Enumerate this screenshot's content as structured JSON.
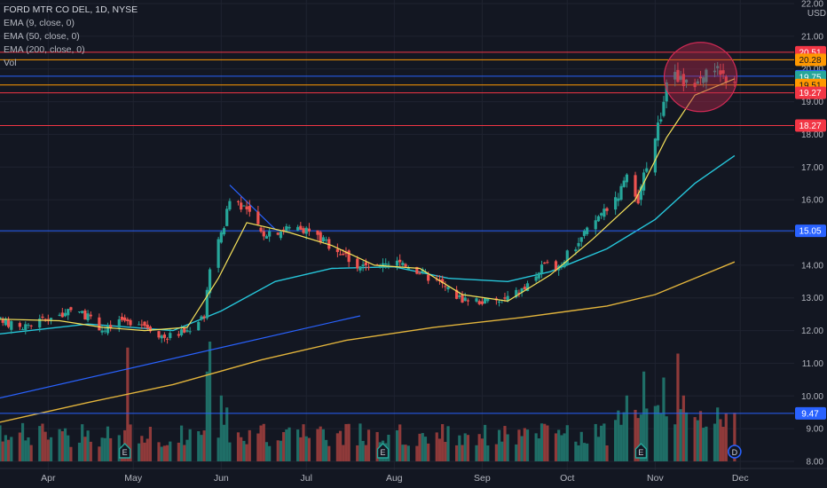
{
  "legend": {
    "title": "FORD MTR CO DEL, 1D, NYSE",
    "ema9": "EMA (9, close, 0)",
    "ema50": "EMA (50, close, 0)",
    "ema200": "EMA (200, close, 0)",
    "vol": "Vol"
  },
  "currency": "USD",
  "colors": {
    "background": "#131722",
    "grid": "#1f2330",
    "up": "#26a69a",
    "down": "#ef5350",
    "vol_up": "#1f6e67",
    "vol_down": "#8f3a3a",
    "ema9": "#f5e15a",
    "ema50": "#26c6da",
    "ema200": "#e2b43c",
    "trend": "#2962ff",
    "circle": "#b0274a",
    "label_red": "#f23645",
    "label_orange": "#ff9800",
    "label_blue": "#2962ff",
    "axis_text": "#b2b5be"
  },
  "chart_data": {
    "type": "candlestick",
    "symbol": "FORD MTR CO DEL",
    "interval": "1D",
    "exchange": "NYSE",
    "y_axis": {
      "min": 8.0,
      "max": 22.0,
      "ticks": [
        8.0,
        9.0,
        10.0,
        11.0,
        12.0,
        13.0,
        14.0,
        15.0,
        16.0,
        17.0,
        18.0,
        19.0,
        20.0,
        21.0,
        22.0
      ]
    },
    "x_axis": {
      "start": "2021-03-15",
      "end": "2021-12-20",
      "labels": [
        {
          "date": "2021-04-01",
          "label": "Apr"
        },
        {
          "date": "2021-05-01",
          "label": "May"
        },
        {
          "date": "2021-06-01",
          "label": "Jun"
        },
        {
          "date": "2021-07-01",
          "label": "Jul"
        },
        {
          "date": "2021-08-01",
          "label": "Aug"
        },
        {
          "date": "2021-09-01",
          "label": "Sep"
        },
        {
          "date": "2021-10-01",
          "label": "Oct"
        },
        {
          "date": "2021-11-01",
          "label": "Nov"
        },
        {
          "date": "2021-12-01",
          "label": "Dec"
        }
      ]
    },
    "close_path": [
      [
        "2021-03-15",
        12.3
      ],
      [
        "2021-03-22",
        12.1
      ],
      [
        "2021-04-01",
        12.4
      ],
      [
        "2021-04-12",
        12.6
      ],
      [
        "2021-04-21",
        12.0
      ],
      [
        "2021-04-26",
        12.3
      ],
      [
        "2021-05-03",
        12.3
      ],
      [
        "2021-05-12",
        11.8
      ],
      [
        "2021-05-20",
        12.0
      ],
      [
        "2021-05-26",
        12.5
      ],
      [
        "2021-05-28",
        14.0
      ],
      [
        "2021-06-01",
        14.9
      ],
      [
        "2021-06-04",
        16.1
      ],
      [
        "2021-06-09",
        15.8
      ],
      [
        "2021-06-15",
        15.0
      ],
      [
        "2021-06-22",
        15.1
      ],
      [
        "2021-06-29",
        15.2
      ],
      [
        "2021-07-06",
        14.8
      ],
      [
        "2021-07-12",
        14.5
      ],
      [
        "2021-07-19",
        14.0
      ],
      [
        "2021-07-26",
        13.9
      ],
      [
        "2021-08-04",
        14.1
      ],
      [
        "2021-08-10",
        13.8
      ],
      [
        "2021-08-18",
        13.4
      ],
      [
        "2021-08-24",
        13.0
      ],
      [
        "2021-09-01",
        12.9
      ],
      [
        "2021-09-08",
        12.9
      ],
      [
        "2021-09-16",
        13.3
      ],
      [
        "2021-09-22",
        13.9
      ],
      [
        "2021-09-28",
        14.0
      ],
      [
        "2021-10-05",
        14.7
      ],
      [
        "2021-10-12",
        15.5
      ],
      [
        "2021-10-19",
        16.2
      ],
      [
        "2021-10-22",
        16.6
      ],
      [
        "2021-10-26",
        15.8
      ],
      [
        "2021-10-29",
        17.1
      ],
      [
        "2021-11-03",
        18.6
      ],
      [
        "2021-11-05",
        19.4
      ],
      [
        "2021-11-09",
        19.8
      ],
      [
        "2021-11-12",
        19.5
      ],
      [
        "2021-11-17",
        19.7
      ],
      [
        "2021-11-22",
        20.1
      ],
      [
        "2021-11-26",
        19.6
      ],
      [
        "2021-11-29",
        19.73
      ]
    ],
    "series": [
      {
        "name": "EMA (9, close, 0)",
        "points": [
          [
            "2021-03-15",
            12.35
          ],
          [
            "2021-04-05",
            12.3
          ],
          [
            "2021-04-20",
            12.1
          ],
          [
            "2021-05-05",
            12.0
          ],
          [
            "2021-05-20",
            12.1
          ],
          [
            "2021-05-31",
            13.6
          ],
          [
            "2021-06-10",
            15.3
          ],
          [
            "2021-06-25",
            15.0
          ],
          [
            "2021-07-10",
            14.6
          ],
          [
            "2021-07-25",
            14.0
          ],
          [
            "2021-08-10",
            13.9
          ],
          [
            "2021-08-25",
            13.1
          ],
          [
            "2021-09-10",
            12.9
          ],
          [
            "2021-09-25",
            13.7
          ],
          [
            "2021-10-10",
            14.8
          ],
          [
            "2021-10-25",
            16.0
          ],
          [
            "2021-11-05",
            17.9
          ],
          [
            "2021-11-15",
            19.2
          ],
          [
            "2021-11-29",
            19.7
          ]
        ]
      },
      {
        "name": "EMA (50, close, 0)",
        "points": [
          [
            "2021-03-15",
            11.9
          ],
          [
            "2021-04-15",
            12.2
          ],
          [
            "2021-05-15",
            12.0
          ],
          [
            "2021-06-01",
            12.6
          ],
          [
            "2021-06-20",
            13.5
          ],
          [
            "2021-07-10",
            13.9
          ],
          [
            "2021-08-01",
            13.95
          ],
          [
            "2021-08-20",
            13.6
          ],
          [
            "2021-09-10",
            13.5
          ],
          [
            "2021-09-25",
            13.8
          ],
          [
            "2021-10-15",
            14.5
          ],
          [
            "2021-11-01",
            15.4
          ],
          [
            "2021-11-15",
            16.5
          ],
          [
            "2021-11-29",
            17.35
          ]
        ]
      },
      {
        "name": "EMA (200, close, 0)",
        "points": [
          [
            "2021-03-15",
            9.2
          ],
          [
            "2021-04-15",
            9.8
          ],
          [
            "2021-05-15",
            10.35
          ],
          [
            "2021-06-15",
            11.1
          ],
          [
            "2021-07-15",
            11.7
          ],
          [
            "2021-08-15",
            12.1
          ],
          [
            "2021-09-15",
            12.4
          ],
          [
            "2021-10-15",
            12.75
          ],
          [
            "2021-11-01",
            13.1
          ],
          [
            "2021-11-15",
            13.6
          ],
          [
            "2021-11-29",
            14.1
          ]
        ]
      }
    ],
    "trend_lines": [
      {
        "from": [
          "2021-03-12",
          9.88
        ],
        "to": [
          "2021-07-20",
          12.45
        ]
      },
      {
        "from": [
          "2021-06-04",
          16.45
        ],
        "to": [
          "2021-06-20",
          15.1
        ]
      }
    ],
    "horizontal_levels": [
      {
        "value": 20.51,
        "label": "20.51",
        "color": "#f23645"
      },
      {
        "value": 20.28,
        "label": "20.28",
        "color": "#ff9800"
      },
      {
        "value": 19.78,
        "label": "19.78",
        "color": "#2962ff"
      },
      {
        "value": 19.75,
        "label": "19.75",
        "color": "#26a69a"
      },
      {
        "value": 19.51,
        "label": "19.51",
        "color": "#ff9800"
      },
      {
        "value": 19.27,
        "label": "19.27",
        "color": "#f23645"
      },
      {
        "value": 18.27,
        "label": "18.27",
        "color": "#f23645"
      },
      {
        "value": 15.05,
        "label": "15.05",
        "color": "#2962ff"
      },
      {
        "value": 9.47,
        "label": "9.47",
        "color": "#2962ff"
      }
    ],
    "highlight_circle": {
      "date": "2021-11-17",
      "value": 19.7
    },
    "event_markers": [
      {
        "date": "2021-04-28",
        "letter": "E"
      },
      {
        "date": "2021-07-28",
        "letter": "E"
      },
      {
        "date": "2021-10-27",
        "letter": "E"
      },
      {
        "date": "2021-11-29",
        "letter": "D"
      }
    ],
    "volume_spikes": [
      {
        "date": "2021-04-29",
        "rel": 0.95
      },
      {
        "date": "2021-05-27",
        "rel": 0.75
      },
      {
        "date": "2021-05-28",
        "rel": 1.0
      },
      {
        "date": "2021-06-01",
        "rel": 0.55
      },
      {
        "date": "2021-06-03",
        "rel": 0.45
      },
      {
        "date": "2021-10-22",
        "rel": 0.55
      },
      {
        "date": "2021-10-28",
        "rel": 0.75
      },
      {
        "date": "2021-11-04",
        "rel": 0.7
      },
      {
        "date": "2021-11-09",
        "rel": 0.9
      },
      {
        "date": "2021-11-11",
        "rel": 0.55
      },
      {
        "date": "2021-11-23",
        "rel": 0.45
      }
    ]
  }
}
